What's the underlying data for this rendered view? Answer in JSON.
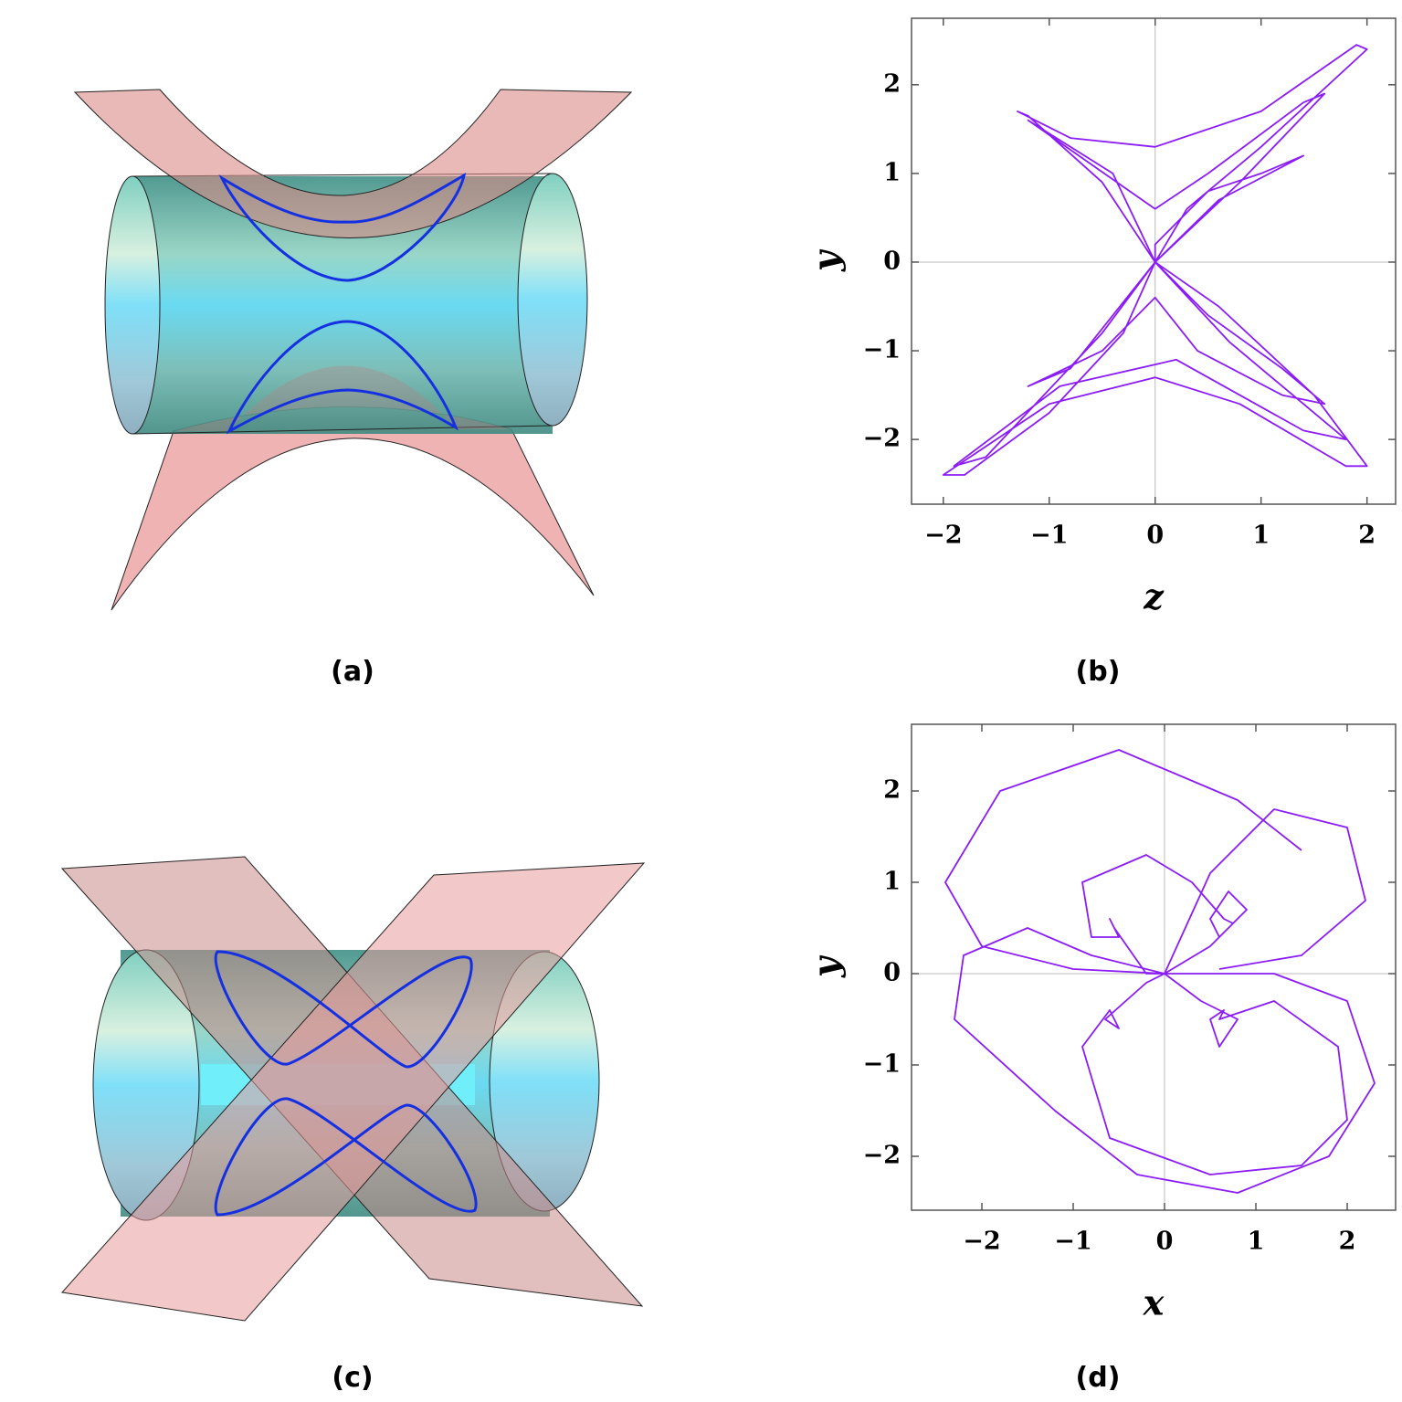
{
  "figures": [
    {
      "caption": "(a)"
    },
    {
      "caption": "(c)"
    }
  ],
  "chart_data": [
    {
      "type": "line",
      "caption": "(b)",
      "x_label": "z",
      "y_label": "y",
      "color": "#8b1cf5",
      "zero_axes": true,
      "xlim": [
        -2.3,
        2.27
      ],
      "ylim": [
        -2.73,
        2.75
      ],
      "xticks": [
        {
          "value": -2,
          "label": "−2"
        },
        {
          "value": -1,
          "label": "−1"
        },
        0,
        1,
        2
      ],
      "yticks": [
        {
          "value": -2,
          "label": "−2"
        },
        {
          "value": -1,
          "label": "−1"
        },
        0,
        1,
        2
      ],
      "x": [
        1,
        0.5,
        0,
        0,
        0.6,
        1.5,
        2,
        1.8,
        0.8,
        0,
        -1,
        -2,
        -1.8,
        -1,
        -0.3,
        0,
        0.3,
        1,
        2,
        1.9,
        1,
        0,
        -0.8,
        -1.3,
        -1.2,
        -0.5,
        0,
        0.5,
        1.2,
        1.6,
        1.2,
        0.4,
        0,
        -0.5,
        -1.2,
        -0.8,
        0,
        0.8,
        1.6,
        1.4,
        0.5,
        0,
        -0.6,
        -1.2,
        -0.4,
        0,
        0.7,
        1.8,
        1.4,
        0.2,
        -0.9,
        -1.9,
        -1.6,
        -0.5,
        0,
        0.6,
        1.4,
        1
      ],
      "values": [
        1,
        0.8,
        0.2,
        0,
        -0.5,
        -1.5,
        -2.3,
        -2.3,
        -1.6,
        -1.3,
        -1.6,
        -2.4,
        -2.4,
        -1.7,
        -0.8,
        0,
        0.6,
        1.3,
        2.4,
        2.45,
        1.7,
        1.3,
        1.4,
        1.7,
        1.65,
        0.9,
        0,
        -0.6,
        -1.2,
        -1.6,
        -1.5,
        -1,
        -0.4,
        -1,
        -1.4,
        -1.2,
        0,
        0.9,
        1.9,
        1.8,
        1,
        0.6,
        1.1,
        1.6,
        1,
        0,
        -0.9,
        -2,
        -1.9,
        -1.1,
        -1.4,
        -2.3,
        -2.2,
        -0.8,
        0,
        0.7,
        1.2,
        1
      ]
    },
    {
      "type": "line",
      "caption": "(d)",
      "x_label": "x",
      "y_label": "y",
      "color": "#8b1cf5",
      "zero_axes": true,
      "xlim": [
        -2.77,
        2.53
      ],
      "ylim": [
        -2.59,
        2.73
      ],
      "xticks": [
        {
          "value": -2,
          "label": "−2"
        },
        {
          "value": -1,
          "label": "−1"
        },
        0,
        1,
        2
      ],
      "yticks": [
        {
          "value": -2,
          "label": "−2"
        },
        {
          "value": -1,
          "label": "−1"
        },
        0,
        1,
        2
      ],
      "x": [
        1.5,
        0.8,
        -0.5,
        -1.8,
        -2.4,
        -2,
        -1,
        0,
        0.5,
        0.9,
        0.7,
        0.5,
        0.6,
        0.75,
        0.65,
        0.3,
        -0.2,
        -0.9,
        -0.8,
        -0.5,
        -0.6,
        -0.55,
        -0.2,
        0,
        0.4,
        0.8,
        0.6,
        0.5,
        0.65,
        0.6,
        1.2,
        1.9,
        2,
        1.5,
        0.5,
        -0.6,
        -0.9,
        -0.6,
        -0.5,
        -0.65,
        -0.2,
        0,
        1.2,
        2,
        2.3,
        1.8,
        0.8,
        -0.3,
        -1.2,
        -2.3,
        -2.2,
        -1.5,
        -0.8,
        0,
        0.5,
        1.2,
        2,
        2.2,
        1.5,
        0.6
      ],
      "values": [
        1.35,
        1.9,
        2.45,
        2,
        1,
        0.3,
        0.05,
        0,
        0.3,
        0.7,
        0.9,
        0.6,
        0.4,
        0.55,
        0.6,
        1,
        1.3,
        1,
        0.4,
        0.4,
        0.6,
        0.5,
        0,
        0,
        -0.3,
        -0.5,
        -0.8,
        -0.5,
        -0.4,
        -0.5,
        -0.3,
        -0.8,
        -1.6,
        -2.1,
        -2.2,
        -1.8,
        -0.8,
        -0.4,
        -0.6,
        -0.5,
        -0.1,
        0,
        0,
        -0.3,
        -1.2,
        -2,
        -2.4,
        -2.2,
        -1.5,
        -0.5,
        0.2,
        0.5,
        0.2,
        0,
        1.1,
        1.8,
        1.6,
        0.8,
        0.2,
        0.05
      ]
    }
  ]
}
